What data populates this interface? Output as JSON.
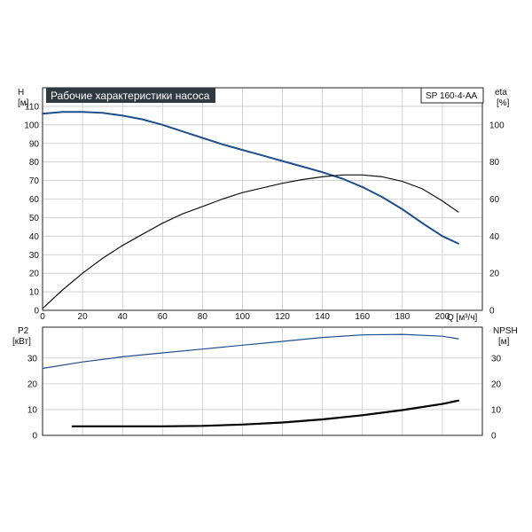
{
  "chart_data": {
    "type": "line",
    "title": "Рабочие характеристики насоса",
    "model": "SP 160-4-AA",
    "x_axis": {
      "label": "Q [м³/ч]",
      "ticks": [
        "0",
        "20",
        "40",
        "60",
        "80",
        "100",
        "120",
        "140",
        "160",
        "180",
        "200"
      ],
      "range": [
        0,
        220
      ]
    },
    "top_panel": {
      "left_axis": {
        "label_line1": "H",
        "label_line2": "[м]",
        "ticks": [
          "0",
          "10",
          "20",
          "30",
          "40",
          "50",
          "60",
          "70",
          "80",
          "90",
          "100",
          "110"
        ],
        "range": [
          0,
          120
        ]
      },
      "right_axis": {
        "label_line1": "eta",
        "label_line2": "[%]",
        "ticks": [
          "0",
          "20",
          "40",
          "60",
          "80",
          "100"
        ],
        "range": [
          0,
          120
        ]
      },
      "series": [
        {
          "axis": "left",
          "color": "#1f4e8c",
          "x": [
            0,
            10,
            20,
            30,
            40,
            50,
            60,
            70,
            80,
            90,
            100,
            110,
            120,
            130,
            140,
            150,
            160,
            170,
            180,
            190,
            200,
            208
          ],
          "y": [
            106,
            107,
            107,
            106.5,
            105,
            103,
            100,
            96.5,
            93,
            89.5,
            86.5,
            83.5,
            80.5,
            77.5,
            74.5,
            71,
            66.5,
            61,
            54.5,
            47,
            40,
            36
          ]
        },
        {
          "axis": "right",
          "color": "#111111",
          "x": [
            0,
            10,
            20,
            30,
            40,
            50,
            60,
            70,
            80,
            90,
            100,
            110,
            120,
            130,
            140,
            150,
            160,
            170,
            180,
            190,
            200,
            208
          ],
          "y": [
            1,
            11,
            20,
            28,
            35,
            41,
            47,
            52,
            56,
            60,
            63.5,
            66,
            68.5,
            70.5,
            72,
            73,
            73,
            72,
            69.5,
            65.5,
            59,
            53
          ]
        }
      ]
    },
    "bottom_panel": {
      "left_axis": {
        "label_line1": "P2",
        "label_line2": "[кВт]",
        "ticks": [
          "0",
          "10",
          "20",
          "30"
        ],
        "range": [
          0,
          42
        ]
      },
      "right_axis": {
        "label_line1": "NPSH",
        "label_line2": "[м]",
        "ticks": [
          "0",
          "10",
          "20",
          "30"
        ],
        "range": [
          0,
          42
        ]
      },
      "series": [
        {
          "axis": "left",
          "color": "#1f4e8c",
          "x": [
            0,
            20,
            40,
            60,
            80,
            100,
            120,
            140,
            160,
            180,
            200,
            208
          ],
          "y": [
            26,
            28.5,
            30.5,
            32,
            33.5,
            35,
            36.5,
            38,
            39,
            39.2,
            38.5,
            37.5
          ]
        },
        {
          "axis": "right",
          "color": "#000000",
          "x": [
            15,
            20,
            40,
            60,
            80,
            100,
            120,
            140,
            160,
            180,
            200,
            208
          ],
          "y": [
            3.5,
            3.5,
            3.5,
            3.5,
            3.7,
            4.2,
            5,
            6.2,
            7.8,
            9.8,
            12.2,
            13.5
          ]
        }
      ]
    }
  }
}
